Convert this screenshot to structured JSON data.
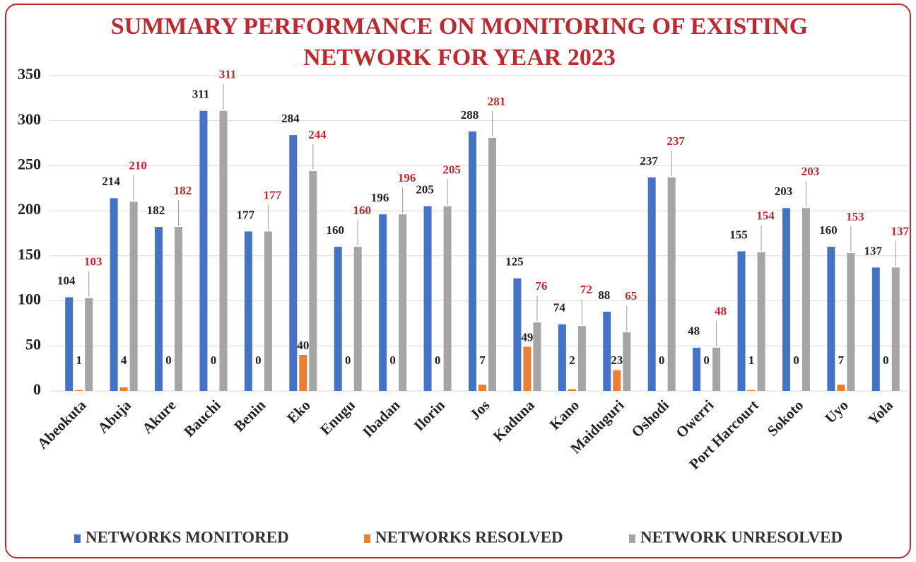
{
  "chart_data": {
    "type": "bar",
    "title": [
      "SUMMARY PERFORMANCE ON MONITORING OF EXISTING",
      "NETWORK FOR YEAR 2023"
    ],
    "categories": [
      "Abeokuta",
      "Abuja",
      "Akure",
      "Bauchi",
      "Benin",
      "Eko",
      "Enugu",
      "Ibadan",
      "Ilorin",
      "Jos",
      "Kaduna",
      "Kano",
      "Maiduguri",
      "Oshodi",
      "Owerri",
      "Port Harcourt",
      "Sokoto",
      "Uyo",
      "Yola"
    ],
    "series": [
      {
        "name": "NETWORKS MONITORED",
        "color": "#4472c4",
        "label_color": "#222222",
        "values": [
          104,
          214,
          182,
          311,
          177,
          284,
          160,
          196,
          205,
          288,
          125,
          74,
          88,
          237,
          48,
          155,
          203,
          160,
          137
        ]
      },
      {
        "name": "NETWORKS RESOLVED",
        "color": "#ed7d31",
        "label_color": "#222222",
        "values": [
          1,
          4,
          0,
          0,
          0,
          40,
          0,
          0,
          0,
          7,
          49,
          2,
          23,
          0,
          0,
          1,
          0,
          7,
          0
        ]
      },
      {
        "name": "NETWORK UNRESOLVED",
        "color": "#a5a5a5",
        "label_color": "#c0282d",
        "values": [
          103,
          210,
          182,
          311,
          177,
          244,
          160,
          196,
          205,
          281,
          76,
          72,
          65,
          237,
          48,
          154,
          203,
          153,
          137
        ]
      }
    ],
    "ylim": [
      0,
      350
    ],
    "yticks": [
      0,
      50,
      100,
      150,
      200,
      250,
      300,
      350
    ],
    "grid": true,
    "legend": "bottom"
  }
}
